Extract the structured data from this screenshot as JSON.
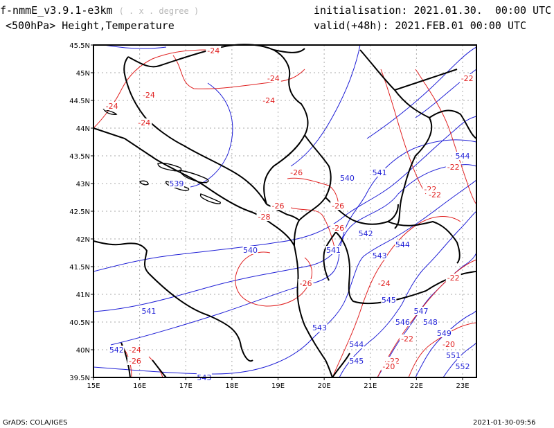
{
  "header": {
    "model": "f-nmmE_v3.9.1-e3km",
    "units": "( . x . degree )",
    "level": "<500hPa> Height,Temperature",
    "init_label": "initialisation:",
    "init_value": "2021.01.30.  00:00 UTC",
    "valid_label": "valid(+48h):",
    "valid_value": "2021.FEB.01 00:00 UTC"
  },
  "footer": {
    "credit": "GrADS: COLA/IGES",
    "stamp": "2021-01-30-09:56"
  },
  "map": {
    "lon_range": [
      15,
      23.3
    ],
    "lat_range": [
      39.5,
      45.5
    ],
    "lon_ticks": [
      "15E",
      "16E",
      "17E",
      "18E",
      "19E",
      "20E",
      "21E",
      "22E",
      "23E"
    ],
    "lat_ticks": [
      "39.5N",
      "40N",
      "40.5N",
      "41N",
      "41.5N",
      "42N",
      "42.5N",
      "43N",
      "43.5N",
      "44N",
      "44.5N",
      "45N",
      "45.5N"
    ],
    "height_color": "#1f1fd6",
    "temp_color": "#e02020",
    "height_labels": [
      {
        "text": "539",
        "lon": 16.8,
        "lat": 43.0
      },
      {
        "text": "540",
        "lon": 18.4,
        "lat": 41.8
      },
      {
        "text": "540",
        "lon": 20.5,
        "lat": 43.1
      },
      {
        "text": "541",
        "lon": 21.2,
        "lat": 43.2
      },
      {
        "text": "541",
        "lon": 16.2,
        "lat": 40.7
      },
      {
        "text": "541",
        "lon": 20.2,
        "lat": 41.8
      },
      {
        "text": "542",
        "lon": 15.5,
        "lat": 40.0
      },
      {
        "text": "542",
        "lon": 20.9,
        "lat": 42.1
      },
      {
        "text": "543",
        "lon": 17.4,
        "lat": 39.5
      },
      {
        "text": "543",
        "lon": 19.9,
        "lat": 40.4
      },
      {
        "text": "543",
        "lon": 21.2,
        "lat": 41.7
      },
      {
        "text": "544",
        "lon": 21.7,
        "lat": 41.9
      },
      {
        "text": "544",
        "lon": 20.7,
        "lat": 40.1
      },
      {
        "text": "544",
        "lon": 23.0,
        "lat": 43.5
      },
      {
        "text": "545",
        "lon": 21.4,
        "lat": 40.9
      },
      {
        "text": "545",
        "lon": 20.7,
        "lat": 39.8
      },
      {
        "text": "546",
        "lon": 21.7,
        "lat": 40.5
      },
      {
        "text": "547",
        "lon": 22.1,
        "lat": 40.7
      },
      {
        "text": "548",
        "lon": 22.3,
        "lat": 40.5
      },
      {
        "text": "549",
        "lon": 22.6,
        "lat": 40.3
      },
      {
        "text": "551",
        "lon": 22.8,
        "lat": 39.9
      },
      {
        "text": "552",
        "lon": 23.0,
        "lat": 39.7
      }
    ],
    "temp_labels": [
      {
        "text": "-24",
        "lon": 17.6,
        "lat": 45.4
      },
      {
        "text": "-24",
        "lon": 16.2,
        "lat": 44.6
      },
      {
        "text": "-24",
        "lon": 16.1,
        "lat": 44.1
      },
      {
        "text": "-24",
        "lon": 15.4,
        "lat": 44.4
      },
      {
        "text": "-24",
        "lon": 18.9,
        "lat": 44.9
      },
      {
        "text": "-24",
        "lon": 18.8,
        "lat": 44.5
      },
      {
        "text": "-24",
        "lon": 15.9,
        "lat": 40.0
      },
      {
        "text": "-24",
        "lon": 21.3,
        "lat": 41.2
      },
      {
        "text": "-22",
        "lon": 23.1,
        "lat": 44.9
      },
      {
        "text": "-22",
        "lon": 22.8,
        "lat": 43.3
      },
      {
        "text": "-22",
        "lon": 22.3,
        "lat": 42.9
      },
      {
        "text": "-22",
        "lon": 22.4,
        "lat": 42.8
      },
      {
        "text": "-22",
        "lon": 22.8,
        "lat": 41.3
      },
      {
        "text": "-22",
        "lon": 21.8,
        "lat": 40.2
      },
      {
        "text": "-22",
        "lon": 21.5,
        "lat": 39.8
      },
      {
        "text": "-26",
        "lon": 19.4,
        "lat": 43.2
      },
      {
        "text": "-26",
        "lon": 19.0,
        "lat": 42.6
      },
      {
        "text": "-26",
        "lon": 20.3,
        "lat": 42.6
      },
      {
        "text": "-26",
        "lon": 20.3,
        "lat": 42.2
      },
      {
        "text": "-26",
        "lon": 15.9,
        "lat": 39.8
      },
      {
        "text": "-26",
        "lon": 19.6,
        "lat": 41.2
      },
      {
        "text": "-28",
        "lon": 18.7,
        "lat": 42.4
      },
      {
        "text": "-20",
        "lon": 22.7,
        "lat": 40.1
      },
      {
        "text": "-20",
        "lon": 21.4,
        "lat": 39.7
      }
    ]
  }
}
